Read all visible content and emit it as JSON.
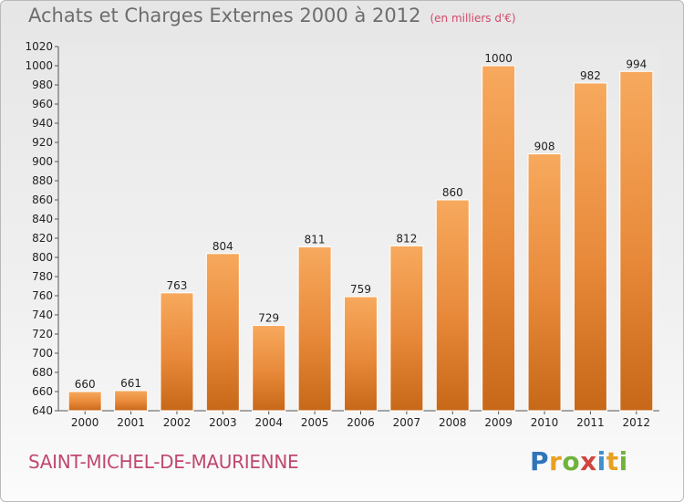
{
  "title": "Achats et Charges Externes 2000 à 2012",
  "unit": "(en milliers d'€)",
  "commune": "SAINT-MICHEL-DE-MAURIENNE",
  "logo": "Proxiti",
  "colors": {
    "bar_top": "#f6a65a",
    "bar_bottom": "#c96a1a",
    "title": "#6d6d6d",
    "commune": "#c0486e"
  },
  "chart_data": {
    "type": "bar",
    "title": "Achats et Charges Externes 2000 à 2012",
    "subtitle": "(en milliers d'€)",
    "categories": [
      "2000",
      "2001",
      "2002",
      "2003",
      "2004",
      "2005",
      "2006",
      "2007",
      "2008",
      "2009",
      "2010",
      "2011",
      "2012"
    ],
    "values": [
      660,
      661,
      763,
      804,
      729,
      811,
      759,
      812,
      860,
      1000,
      908,
      982,
      994
    ],
    "ylim": [
      640,
      1020
    ],
    "yticks": [
      640,
      660,
      680,
      700,
      720,
      740,
      760,
      780,
      800,
      820,
      840,
      860,
      880,
      900,
      920,
      940,
      960,
      980,
      1000,
      1020
    ],
    "grid": false,
    "xlabel": "",
    "ylabel": ""
  }
}
